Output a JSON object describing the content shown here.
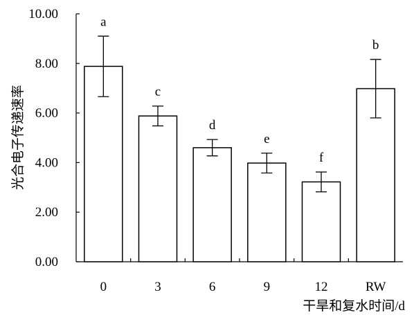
{
  "chart_data": {
    "type": "bar",
    "categories": [
      "0",
      "3",
      "6",
      "9",
      "12",
      "RW"
    ],
    "values": [
      7.88,
      5.88,
      4.6,
      3.98,
      3.22,
      6.98
    ],
    "errors": [
      1.22,
      0.4,
      0.33,
      0.4,
      0.4,
      1.18
    ],
    "significance": [
      "a",
      "c",
      "d",
      "e",
      "f",
      "b"
    ],
    "title": "",
    "xlabel": "干旱和复水时间/d",
    "ylabel": "光合电子传递速率",
    "ylim": [
      0,
      10
    ],
    "yticks": [
      "0.00",
      "2.00",
      "4.00",
      "6.00",
      "8.00",
      "10.00"
    ],
    "grid": false,
    "legend": "none",
    "bar_fill": "#ffffff",
    "bar_stroke": "#000000"
  }
}
